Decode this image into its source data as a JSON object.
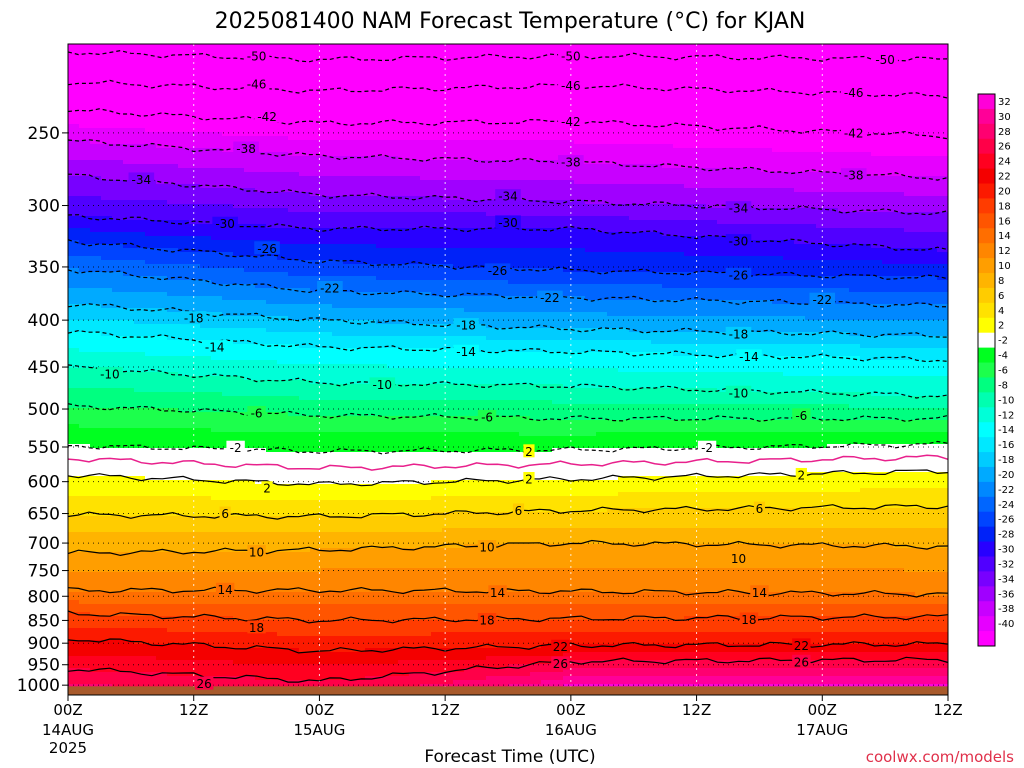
{
  "title": "2025081400 NAM Forecast Temperature (°C) for KJAN",
  "credit": "coolwx.com/models",
  "chart_data": {
    "type": "heatmap",
    "title": "2025081400 NAM Forecast Temperature (°C) for KJAN",
    "xlabel": "Forecast Time (UTC)",
    "ylabel": "",
    "x_ticks": [
      {
        "hours": 0,
        "label": "00Z",
        "sub1": "14AUG",
        "sub2": "2025"
      },
      {
        "hours": 12,
        "label": "12Z",
        "sub1": "",
        "sub2": ""
      },
      {
        "hours": 24,
        "label": "00Z",
        "sub1": "15AUG",
        "sub2": ""
      },
      {
        "hours": 36,
        "label": "12Z",
        "sub1": "",
        "sub2": ""
      },
      {
        "hours": 48,
        "label": "00Z",
        "sub1": "16AUG",
        "sub2": ""
      },
      {
        "hours": 60,
        "label": "12Z",
        "sub1": "",
        "sub2": ""
      },
      {
        "hours": 72,
        "label": "00Z",
        "sub1": "17AUG",
        "sub2": ""
      },
      {
        "hours": 84,
        "label": "12Z",
        "sub1": "",
        "sub2": ""
      }
    ],
    "xlim": [
      0,
      84
    ],
    "y_ticks": [
      250,
      300,
      350,
      400,
      450,
      500,
      550,
      600,
      650,
      700,
      750,
      800,
      850,
      900,
      950,
      1000
    ],
    "ylim": [
      1025,
      200
    ],
    "y_scale": "log-pressure",
    "colorbar_labels": [
      32,
      30,
      28,
      26,
      24,
      22,
      20,
      18,
      16,
      14,
      12,
      10,
      8,
      6,
      4,
      2,
      -2,
      -4,
      -6,
      -8,
      -10,
      -12,
      -14,
      -16,
      -18,
      -20,
      -22,
      -24,
      -26,
      -28,
      -30,
      -32,
      -34,
      -36,
      -38,
      -40
    ],
    "colorbar_colors": [
      "#ff00d8",
      "#ff0098",
      "#ff0070",
      "#ff0048",
      "#ff0020",
      "#f40000",
      "#fc1a00",
      "#ff3c00",
      "#ff5500",
      "#ff6e00",
      "#ff8600",
      "#ff9e00",
      "#ffb400",
      "#ffcc00",
      "#ffe200",
      "#ffff00",
      "#ffffff",
      "#00ff20",
      "#1cff4c",
      "#00ff80",
      "#00ffb0",
      "#00ffd8",
      "#00ffff",
      "#00e8ff",
      "#00ccff",
      "#00aaff",
      "#0088ff",
      "#0066ff",
      "#0044ff",
      "#0022f8",
      "#2800ff",
      "#5000ff",
      "#7800ff",
      "#a000ff",
      "#c800ff",
      "#e600ff",
      "#ff00ff"
    ],
    "contour_lines": [
      {
        "temp": -50,
        "style": "dashed",
        "label_positions": [
          {
            "hours": 18,
            "pressure": 206
          },
          {
            "hours": 48,
            "pressure": 206
          },
          {
            "hours": 78,
            "pressure": 208
          }
        ],
        "profile": [
          {
            "hours": 0,
            "pressure": 204
          },
          {
            "hours": 24,
            "pressure": 208
          },
          {
            "hours": 48,
            "pressure": 206
          },
          {
            "hours": 84,
            "pressure": 208
          }
        ]
      },
      {
        "temp": -46,
        "style": "dashed",
        "label_positions": [
          {
            "hours": 18,
            "pressure": 221
          },
          {
            "hours": 48,
            "pressure": 222
          },
          {
            "hours": 75,
            "pressure": 226
          }
        ],
        "profile": [
          {
            "hours": 0,
            "pressure": 220
          },
          {
            "hours": 24,
            "pressure": 225
          },
          {
            "hours": 48,
            "pressure": 222
          },
          {
            "hours": 84,
            "pressure": 228
          }
        ]
      },
      {
        "temp": -42,
        "style": "dashed",
        "label_positions": [
          {
            "hours": 19,
            "pressure": 240
          },
          {
            "hours": 48,
            "pressure": 243
          },
          {
            "hours": 75,
            "pressure": 250
          }
        ],
        "profile": [
          {
            "hours": 0,
            "pressure": 236
          },
          {
            "hours": 24,
            "pressure": 244
          },
          {
            "hours": 48,
            "pressure": 243
          },
          {
            "hours": 84,
            "pressure": 252
          }
        ]
      },
      {
        "temp": -38,
        "style": "dashed",
        "label_positions": [
          {
            "hours": 17,
            "pressure": 260
          },
          {
            "hours": 48,
            "pressure": 269
          },
          {
            "hours": 75,
            "pressure": 278
          }
        ],
        "profile": [
          {
            "hours": 0,
            "pressure": 255
          },
          {
            "hours": 24,
            "pressure": 265
          },
          {
            "hours": 48,
            "pressure": 269
          },
          {
            "hours": 84,
            "pressure": 280
          }
        ]
      },
      {
        "temp": -34,
        "style": "dashed",
        "label_positions": [
          {
            "hours": 7,
            "pressure": 281
          },
          {
            "hours": 42,
            "pressure": 293
          },
          {
            "hours": 64,
            "pressure": 302
          }
        ],
        "profile": [
          {
            "hours": 0,
            "pressure": 278
          },
          {
            "hours": 24,
            "pressure": 292
          },
          {
            "hours": 48,
            "pressure": 297
          },
          {
            "hours": 84,
            "pressure": 306
          }
        ]
      },
      {
        "temp": -30,
        "style": "dashed",
        "label_positions": [
          {
            "hours": 15,
            "pressure": 314
          },
          {
            "hours": 42,
            "pressure": 313
          },
          {
            "hours": 64,
            "pressure": 328
          }
        ],
        "profile": [
          {
            "hours": 0,
            "pressure": 308
          },
          {
            "hours": 24,
            "pressure": 318
          },
          {
            "hours": 48,
            "pressure": 318
          },
          {
            "hours": 84,
            "pressure": 336
          }
        ]
      },
      {
        "temp": -26,
        "style": "dashed",
        "label_positions": [
          {
            "hours": 19,
            "pressure": 334
          },
          {
            "hours": 41,
            "pressure": 353
          },
          {
            "hours": 64,
            "pressure": 357
          }
        ],
        "profile": [
          {
            "hours": 0,
            "pressure": 328
          },
          {
            "hours": 24,
            "pressure": 345
          },
          {
            "hours": 48,
            "pressure": 353
          },
          {
            "hours": 84,
            "pressure": 360
          }
        ]
      },
      {
        "temp": -22,
        "style": "dashed",
        "label_positions": [
          {
            "hours": 25,
            "pressure": 369
          },
          {
            "hours": 46,
            "pressure": 378
          },
          {
            "hours": 72,
            "pressure": 380
          }
        ],
        "profile": [
          {
            "hours": 0,
            "pressure": 352
          },
          {
            "hours": 24,
            "pressure": 372
          },
          {
            "hours": 48,
            "pressure": 378
          },
          {
            "hours": 84,
            "pressure": 386
          }
        ]
      },
      {
        "temp": -18,
        "style": "dashed",
        "label_positions": [
          {
            "hours": 12,
            "pressure": 398
          },
          {
            "hours": 38,
            "pressure": 405
          },
          {
            "hours": 64,
            "pressure": 414
          }
        ],
        "profile": [
          {
            "hours": 0,
            "pressure": 384
          },
          {
            "hours": 24,
            "pressure": 400
          },
          {
            "hours": 48,
            "pressure": 409
          },
          {
            "hours": 84,
            "pressure": 416
          }
        ]
      },
      {
        "temp": -14,
        "style": "dashed",
        "label_positions": [
          {
            "hours": 14,
            "pressure": 428
          },
          {
            "hours": 38,
            "pressure": 433
          },
          {
            "hours": 65,
            "pressure": 438
          }
        ],
        "profile": [
          {
            "hours": 0,
            "pressure": 412
          },
          {
            "hours": 24,
            "pressure": 428
          },
          {
            "hours": 48,
            "pressure": 433
          },
          {
            "hours": 84,
            "pressure": 442
          }
        ]
      },
      {
        "temp": -10,
        "style": "dashed",
        "label_positions": [
          {
            "hours": 4,
            "pressure": 458
          },
          {
            "hours": 30,
            "pressure": 470
          },
          {
            "hours": 64,
            "pressure": 480
          }
        ],
        "profile": [
          {
            "hours": 0,
            "pressure": 450
          },
          {
            "hours": 24,
            "pressure": 468
          },
          {
            "hours": 48,
            "pressure": 472
          },
          {
            "hours": 84,
            "pressure": 484
          }
        ]
      },
      {
        "temp": -6,
        "style": "dashed",
        "label_positions": [
          {
            "hours": 18,
            "pressure": 505
          },
          {
            "hours": 40,
            "pressure": 510
          },
          {
            "hours": 70,
            "pressure": 508
          }
        ],
        "profile": [
          {
            "hours": 0,
            "pressure": 496
          },
          {
            "hours": 24,
            "pressure": 508
          },
          {
            "hours": 48,
            "pressure": 512
          },
          {
            "hours": 84,
            "pressure": 512
          }
        ]
      },
      {
        "temp": -2,
        "style": "dashed",
        "label_positions": [
          {
            "hours": 16,
            "pressure": 551
          },
          {
            "hours": 61,
            "pressure": 551
          }
        ],
        "profile": [
          {
            "hours": 0,
            "pressure": 548
          },
          {
            "hours": 24,
            "pressure": 556
          },
          {
            "hours": 48,
            "pressure": 554
          },
          {
            "hours": 84,
            "pressure": 546
          }
        ]
      },
      {
        "temp": 0,
        "style": "magenta",
        "label_positions": [],
        "profile": [
          {
            "hours": 0,
            "pressure": 566
          },
          {
            "hours": 24,
            "pressure": 580
          },
          {
            "hours": 48,
            "pressure": 574
          },
          {
            "hours": 84,
            "pressure": 564
          }
        ]
      },
      {
        "temp": 2,
        "style": "solid",
        "label_positions": [
          {
            "hours": 19,
            "pressure": 610
          },
          {
            "hours": 44,
            "pressure": 556
          },
          {
            "hours": 44,
            "pressure": 596
          },
          {
            "hours": 70,
            "pressure": 590
          }
        ],
        "profile": [
          {
            "hours": 0,
            "pressure": 590
          },
          {
            "hours": 24,
            "pressure": 604
          },
          {
            "hours": 48,
            "pressure": 596
          },
          {
            "hours": 84,
            "pressure": 584
          }
        ]
      },
      {
        "temp": 6,
        "style": "solid",
        "label_positions": [
          {
            "hours": 15,
            "pressure": 650
          },
          {
            "hours": 43,
            "pressure": 645
          },
          {
            "hours": 66,
            "pressure": 642
          }
        ],
        "profile": [
          {
            "hours": 0,
            "pressure": 652
          },
          {
            "hours": 24,
            "pressure": 655
          },
          {
            "hours": 48,
            "pressure": 645
          },
          {
            "hours": 84,
            "pressure": 638
          }
        ]
      },
      {
        "temp": 10,
        "style": "solid",
        "label_positions": [
          {
            "hours": 18,
            "pressure": 716
          },
          {
            "hours": 40,
            "pressure": 707
          },
          {
            "hours": 64,
            "pressure": 728
          }
        ],
        "profile": [
          {
            "hours": 0,
            "pressure": 718
          },
          {
            "hours": 24,
            "pressure": 712
          },
          {
            "hours": 48,
            "pressure": 700
          },
          {
            "hours": 84,
            "pressure": 706
          }
        ]
      },
      {
        "temp": 14,
        "style": "solid",
        "label_positions": [
          {
            "hours": 15,
            "pressure": 787
          },
          {
            "hours": 41,
            "pressure": 792
          },
          {
            "hours": 66,
            "pressure": 792
          }
        ],
        "profile": [
          {
            "hours": 0,
            "pressure": 788
          },
          {
            "hours": 24,
            "pressure": 788
          },
          {
            "hours": 48,
            "pressure": 790
          },
          {
            "hours": 84,
            "pressure": 796
          }
        ]
      },
      {
        "temp": 18,
        "style": "solid",
        "label_positions": [
          {
            "hours": 18,
            "pressure": 865
          },
          {
            "hours": 40,
            "pressure": 849
          },
          {
            "hours": 65,
            "pressure": 848
          }
        ],
        "profile": [
          {
            "hours": 0,
            "pressure": 835
          },
          {
            "hours": 24,
            "pressure": 850
          },
          {
            "hours": 48,
            "pressure": 846
          },
          {
            "hours": 84,
            "pressure": 842
          }
        ]
      },
      {
        "temp": 22,
        "style": "solid",
        "label_positions": [
          {
            "hours": 47,
            "pressure": 908
          },
          {
            "hours": 70,
            "pressure": 905
          }
        ],
        "profile": [
          {
            "hours": 0,
            "pressure": 890
          },
          {
            "hours": 24,
            "pressure": 918
          },
          {
            "hours": 48,
            "pressure": 905
          },
          {
            "hours": 84,
            "pressure": 902
          }
        ]
      },
      {
        "temp": 26,
        "style": "solid",
        "label_positions": [
          {
            "hours": 13,
            "pressure": 996
          },
          {
            "hours": 47,
            "pressure": 947
          },
          {
            "hours": 70,
            "pressure": 943
          }
        ],
        "profile": [
          {
            "hours": 0,
            "pressure": 960
          },
          {
            "hours": 24,
            "pressure": 990
          },
          {
            "hours": 48,
            "pressure": 942
          },
          {
            "hours": 84,
            "pressure": 938
          }
        ]
      }
    ],
    "ground_pressure": 1003,
    "ground_color": "#a85a2c",
    "grid": true
  }
}
